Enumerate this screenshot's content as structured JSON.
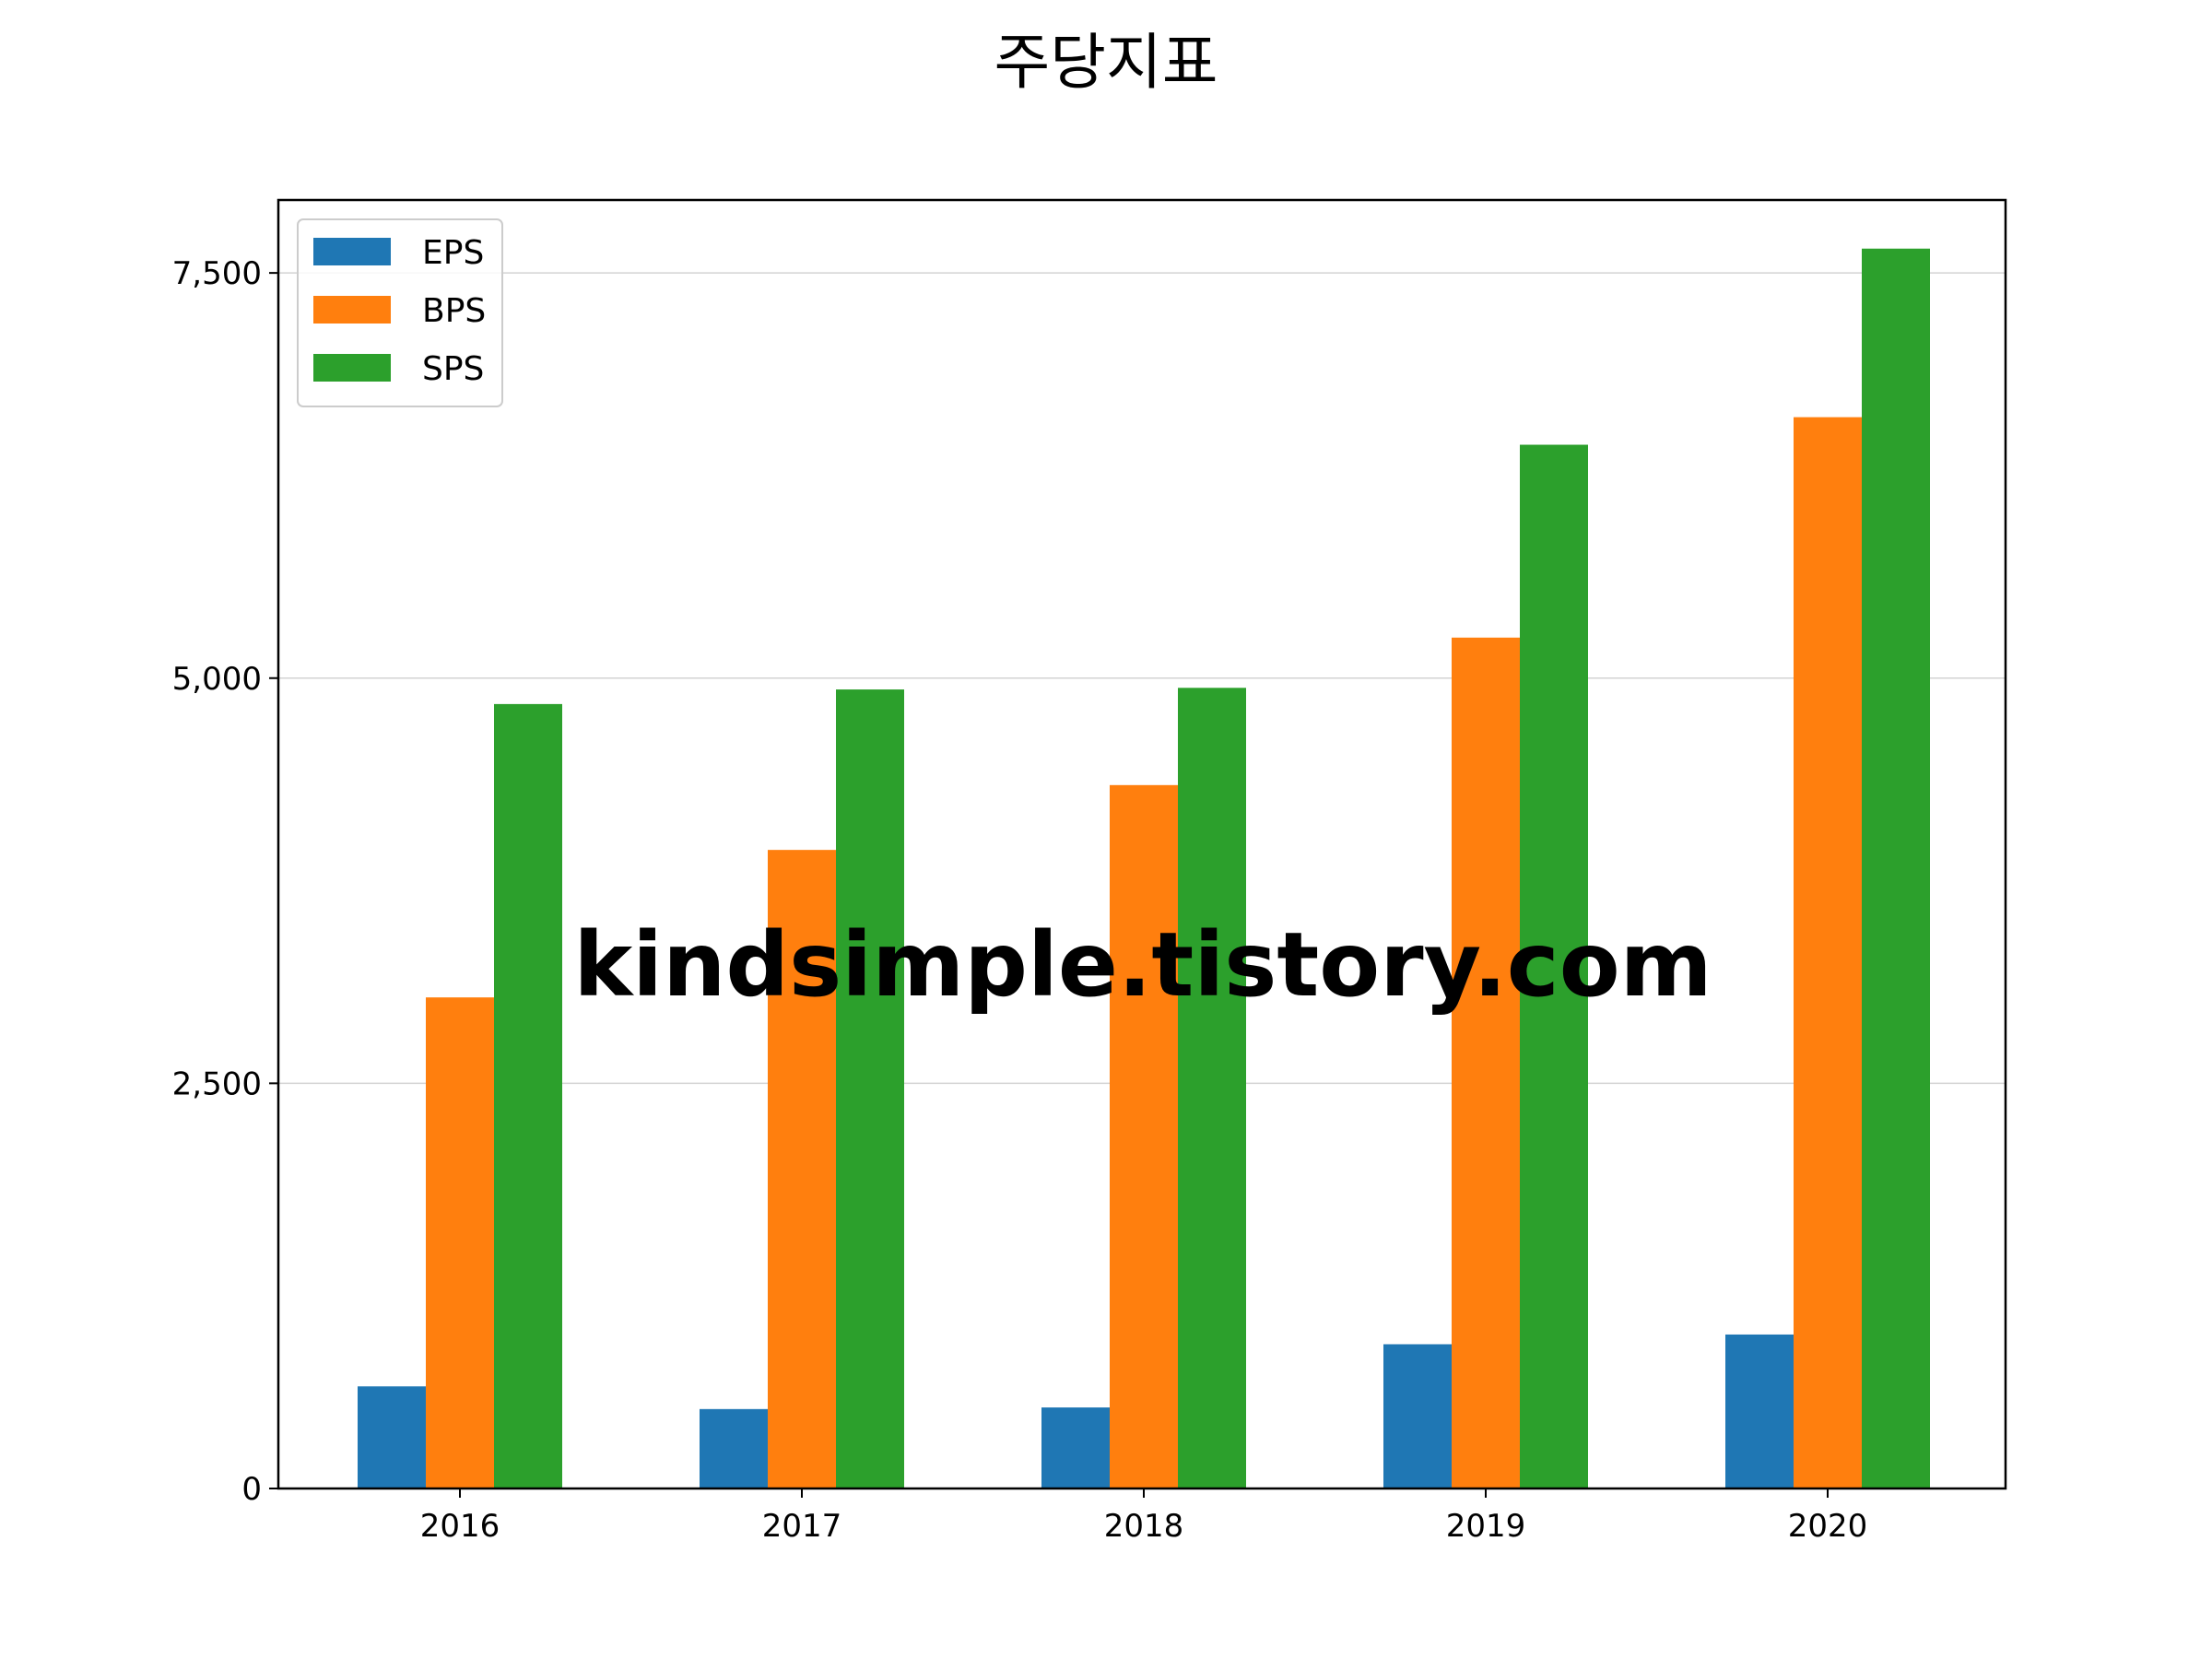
{
  "chart_data": {
    "type": "bar",
    "title": "주당지표",
    "xlabel": "",
    "ylabel": "",
    "categories": [
      "2016",
      "2017",
      "2018",
      "2019",
      "2020"
    ],
    "series": [
      {
        "name": "EPS",
        "color": "#1f77b4",
        "values": [
          630,
          490,
          500,
          890,
          950
        ]
      },
      {
        "name": "BPS",
        "color": "#ff7f0e",
        "values": [
          3030,
          3940,
          4340,
          5250,
          6610
        ]
      },
      {
        "name": "SPS",
        "color": "#2ca02c",
        "values": [
          4840,
          4930,
          4940,
          6440,
          7650
        ]
      }
    ],
    "ylim": [
      0,
      7950
    ],
    "yticks": [
      0,
      2500,
      5000,
      7500
    ],
    "ytick_labels": [
      "0",
      "2,500",
      "5,000",
      "7,500"
    ],
    "grid": "horizontal",
    "legend_position": "top-left",
    "watermark": "kindsimple.tistory.com"
  }
}
